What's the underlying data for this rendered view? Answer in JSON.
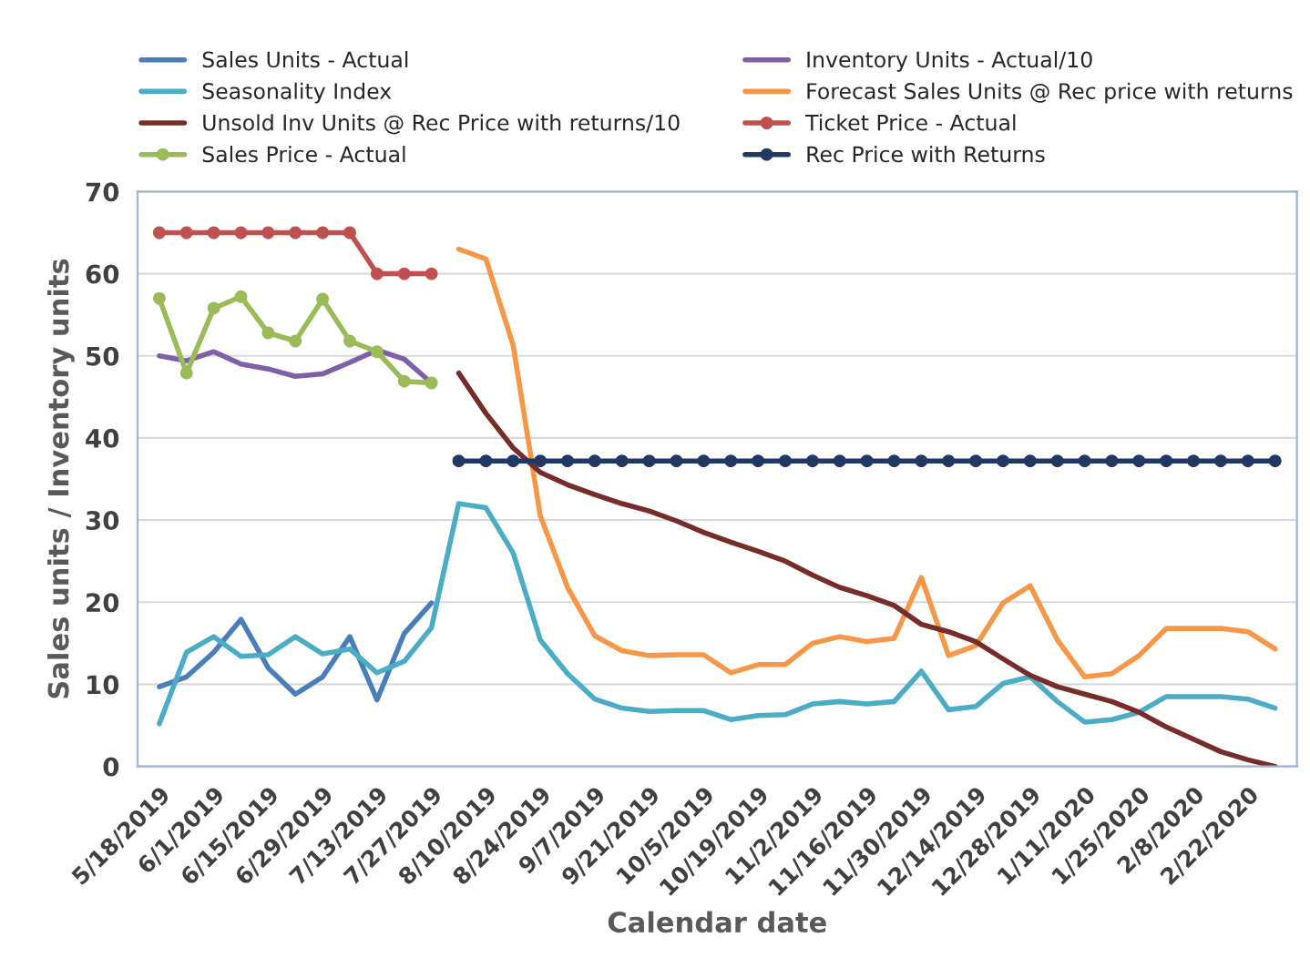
{
  "chart_data": {
    "type": "line",
    "xlabel": "Calendar date",
    "ylabel": "Sales units / Inventory units",
    "categories": [
      "5/18/2019",
      null,
      "6/1/2019",
      null,
      "6/15/2019",
      null,
      "6/29/2019",
      null,
      "7/13/2019",
      null,
      "7/27/2019",
      null,
      "8/10/2019",
      null,
      "8/24/2019",
      null,
      "9/7/2019",
      null,
      "9/21/2019",
      null,
      "10/5/2019",
      null,
      "10/19/2019",
      null,
      "11/2/2019",
      null,
      "11/16/2019",
      null,
      "11/30/2019",
      null,
      "12/14/2019",
      null,
      "12/28/2019",
      null,
      "1/11/2020",
      null,
      "1/25/2020",
      null,
      "2/8/2020",
      null,
      "2/22/2020",
      null
    ],
    "ylim": [
      0,
      70
    ],
    "yticks": [
      0,
      10,
      20,
      30,
      40,
      50,
      60,
      70
    ],
    "grid": "y",
    "legend": "top",
    "series": [
      {
        "name": "Sales Units - Actual",
        "color": "#4a7ebb",
        "marker": "none",
        "values": [
          9.7,
          10.9,
          13.9,
          17.9,
          12.0,
          8.8,
          10.9,
          15.8,
          8.1,
          16.2,
          19.9,
          null,
          null,
          null,
          null,
          null,
          null,
          null,
          null,
          null,
          null,
          null,
          null,
          null,
          null,
          null,
          null,
          null,
          null,
          null,
          null,
          null,
          null,
          null,
          null,
          null,
          null,
          null,
          null,
          null,
          null,
          null
        ]
      },
      {
        "name": "Inventory Units - Actual/10",
        "color": "#7f5fa8",
        "marker": "none",
        "values": [
          50.0,
          49.4,
          50.5,
          49.0,
          48.4,
          47.5,
          47.8,
          49.2,
          50.7,
          49.6,
          46.7,
          null,
          null,
          null,
          null,
          null,
          null,
          null,
          null,
          null,
          null,
          null,
          null,
          null,
          null,
          null,
          null,
          null,
          null,
          null,
          null,
          null,
          null,
          null,
          null,
          null,
          null,
          null,
          null,
          null,
          null,
          null
        ]
      },
      {
        "name": "Seasonality Index",
        "color": "#4bacc6",
        "marker": "none",
        "values": [
          5.2,
          13.9,
          15.8,
          13.4,
          13.6,
          15.8,
          13.7,
          14.3,
          11.4,
          12.8,
          16.9,
          32.0,
          31.5,
          26.0,
          15.4,
          11.3,
          8.2,
          7.1,
          6.7,
          6.8,
          6.8,
          5.7,
          6.2,
          6.3,
          7.6,
          7.9,
          7.6,
          7.9,
          11.6,
          6.9,
          7.3,
          10.1,
          10.9,
          7.9,
          5.4,
          5.7,
          6.6,
          8.5,
          8.5,
          8.5,
          8.2,
          7.1
        ]
      },
      {
        "name": "Forecast Sales Units @ Rec price with returns",
        "color": "#f79646",
        "marker": "none",
        "values": [
          null,
          null,
          null,
          null,
          null,
          null,
          null,
          null,
          null,
          null,
          null,
          63.0,
          61.8,
          51.3,
          30.5,
          21.8,
          15.9,
          14.1,
          13.5,
          13.6,
          13.6,
          11.4,
          12.4,
          12.4,
          15.0,
          15.8,
          15.2,
          15.6,
          23.0,
          13.5,
          14.7,
          19.9,
          22.0,
          15.4,
          10.9,
          11.3,
          13.5,
          16.8,
          16.8,
          16.8,
          16.4,
          14.3
        ]
      },
      {
        "name": "Unsold Inv Units @ Rec Price with returns/10",
        "color": "#772c2a",
        "marker": "none",
        "values": [
          null,
          null,
          null,
          null,
          null,
          null,
          null,
          null,
          null,
          null,
          null,
          47.9,
          43.0,
          38.8,
          35.8,
          34.3,
          33.1,
          32.0,
          31.1,
          29.9,
          28.5,
          27.3,
          26.2,
          25.0,
          23.3,
          21.8,
          20.8,
          19.6,
          17.3,
          16.4,
          15.2,
          13.1,
          11.1,
          9.7,
          8.8,
          7.9,
          6.6,
          4.8,
          3.3,
          1.8,
          0.8,
          0
        ]
      },
      {
        "name": "Ticket Price - Actual",
        "color": "#c0504d",
        "marker": "circle",
        "values": [
          65,
          65,
          65,
          65,
          65,
          65,
          65,
          65,
          60,
          60,
          60,
          null,
          null,
          null,
          null,
          null,
          null,
          null,
          null,
          null,
          null,
          null,
          null,
          null,
          null,
          null,
          null,
          null,
          null,
          null,
          null,
          null,
          null,
          null,
          null,
          null,
          null,
          null,
          null,
          null,
          null,
          null
        ]
      },
      {
        "name": "Sales Price - Actual",
        "color": "#9bbb59",
        "marker": "circle",
        "values": [
          57.0,
          47.9,
          55.8,
          57.2,
          52.8,
          51.8,
          56.9,
          51.8,
          50.5,
          46.9,
          46.7,
          null,
          null,
          null,
          null,
          null,
          null,
          null,
          null,
          null,
          null,
          null,
          null,
          null,
          null,
          null,
          null,
          null,
          null,
          null,
          null,
          null,
          null,
          null,
          null,
          null,
          null,
          null,
          null,
          null,
          null,
          null
        ]
      },
      {
        "name": "Rec Price with Returns",
        "color": "#1f3864",
        "marker": "circle",
        "values": [
          null,
          null,
          null,
          null,
          null,
          null,
          null,
          null,
          null,
          null,
          null,
          37.2,
          37.2,
          37.2,
          37.2,
          37.2,
          37.2,
          37.2,
          37.2,
          37.2,
          37.2,
          37.2,
          37.2,
          37.2,
          37.2,
          37.2,
          37.2,
          37.2,
          37.2,
          37.2,
          37.2,
          37.2,
          37.2,
          37.2,
          37.2,
          37.2,
          37.2,
          37.2,
          37.2,
          37.2,
          37.2,
          37.2
        ]
      }
    ]
  }
}
